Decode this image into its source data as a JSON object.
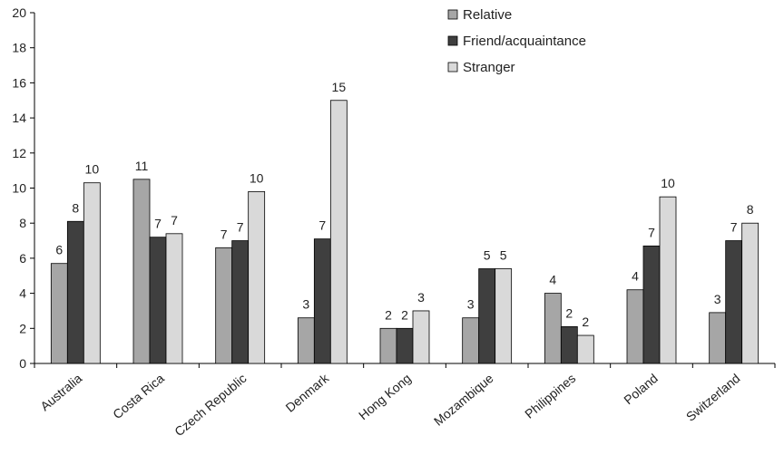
{
  "chart_data": {
    "type": "bar",
    "categories": [
      "Australia",
      "Costa Rica",
      "Czech Republic",
      "Denmark",
      "Hong Kong",
      "Mozambique",
      "Philippines",
      "Poland",
      "Switzerland"
    ],
    "series": [
      {
        "name": "Relative",
        "color": "#a6a6a6",
        "values": [
          5.7,
          10.5,
          6.6,
          2.6,
          2.0,
          2.6,
          4.0,
          4.2,
          2.9
        ],
        "labels": [
          "6",
          "11",
          "7",
          "3",
          "2",
          "3",
          "4",
          "4",
          "3"
        ]
      },
      {
        "name": "Friend/acquaintance",
        "color": "#3f3f3f",
        "values": [
          8.1,
          7.2,
          7.0,
          7.1,
          2.0,
          5.4,
          2.1,
          6.7,
          7.0
        ],
        "labels": [
          "8",
          "7",
          "7",
          "7",
          "2",
          "5",
          "2",
          "7",
          "7"
        ]
      },
      {
        "name": "Stranger",
        "color": "#d9d9d9",
        "values": [
          10.3,
          7.4,
          9.8,
          15.0,
          3.0,
          5.4,
          1.6,
          9.5,
          8.0
        ],
        "labels": [
          "10",
          "7",
          "10",
          "15",
          "3",
          "5",
          "2",
          "10",
          "8"
        ]
      }
    ],
    "title": "",
    "xlabel": "",
    "ylabel": "",
    "ylim": [
      0,
      20
    ],
    "yticks": [
      "0",
      "2",
      "4",
      "6",
      "8",
      "10",
      "12",
      "14",
      "16",
      "18",
      "20"
    ],
    "grid": false,
    "legend_position": "top-right"
  }
}
